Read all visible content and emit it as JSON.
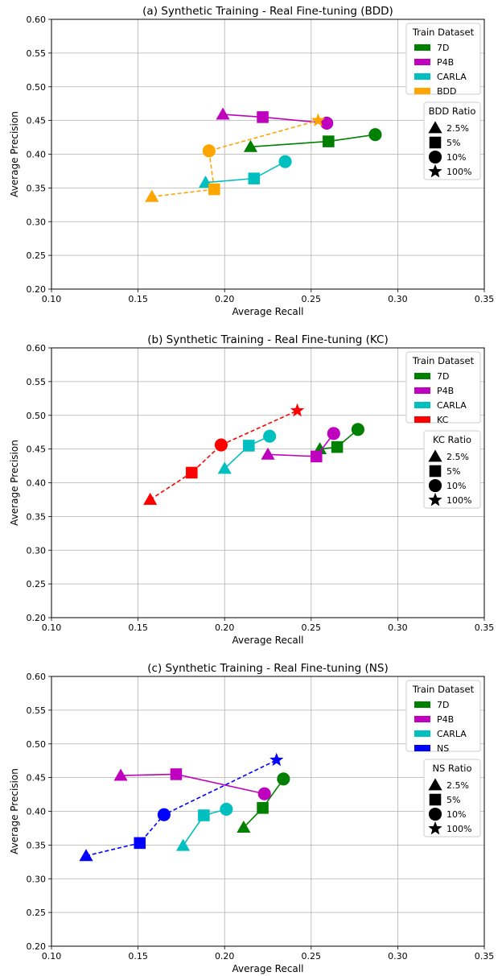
{
  "chart_data": [
    {
      "type": "scatter",
      "title": "(a) Synthetic Training - Real Fine-tuning (BDD)",
      "xlabel": "Average Recall",
      "ylabel": "Average Precision",
      "xlim": [
        0.1,
        0.35
      ],
      "ylim": [
        0.2,
        0.6
      ],
      "xticks": [
        "0.10",
        "0.15",
        "0.20",
        "0.25",
        "0.30",
        "0.35"
      ],
      "yticks": [
        "0.20",
        "0.25",
        "0.30",
        "0.35",
        "0.40",
        "0.45",
        "0.50",
        "0.55",
        "0.60"
      ],
      "grid": true,
      "legend_dataset": {
        "title": "Train Dataset",
        "entries": [
          "7D",
          "P4B",
          "CARLA",
          "BDD"
        ],
        "colors": [
          "#008000",
          "#bf00bf",
          "#00bfbf",
          "#ffa500"
        ],
        "placement": "top-right"
      },
      "legend_ratio": {
        "title": "BDD Ratio",
        "entries": [
          "2.5%",
          "5%",
          "10%",
          "100%"
        ],
        "markers": [
          "triangle",
          "square",
          "circle",
          "star"
        ],
        "placement": "right"
      },
      "series": [
        {
          "name": "7D",
          "color": "#008000",
          "dashed": false,
          "points": [
            {
              "x": 0.215,
              "y": 0.411,
              "m": "triangle"
            },
            {
              "x": 0.26,
              "y": 0.419,
              "m": "square"
            },
            {
              "x": 0.287,
              "y": 0.429,
              "m": "circle"
            }
          ]
        },
        {
          "name": "P4B",
          "color": "#bf00bf",
          "dashed": false,
          "points": [
            {
              "x": 0.199,
              "y": 0.459,
              "m": "triangle"
            },
            {
              "x": 0.222,
              "y": 0.455,
              "m": "square"
            },
            {
              "x": 0.259,
              "y": 0.446,
              "m": "circle"
            }
          ]
        },
        {
          "name": "CARLA",
          "color": "#00bfbf",
          "dashed": false,
          "points": [
            {
              "x": 0.189,
              "y": 0.358,
              "m": "triangle"
            },
            {
              "x": 0.217,
              "y": 0.364,
              "m": "square"
            },
            {
              "x": 0.235,
              "y": 0.389,
              "m": "circle"
            }
          ]
        },
        {
          "name": "BDD",
          "color": "#ffa500",
          "dashed": true,
          "points": [
            {
              "x": 0.158,
              "y": 0.337,
              "m": "triangle"
            },
            {
              "x": 0.194,
              "y": 0.348,
              "m": "square"
            },
            {
              "x": 0.191,
              "y": 0.405,
              "m": "circle"
            },
            {
              "x": 0.254,
              "y": 0.45,
              "m": "star"
            }
          ]
        }
      ]
    },
    {
      "type": "scatter",
      "title": "(b) Synthetic Training - Real Fine-tuning (KC)",
      "xlabel": "Average Recall",
      "ylabel": "Average Precision",
      "xlim": [
        0.1,
        0.35
      ],
      "ylim": [
        0.2,
        0.6
      ],
      "xticks": [
        "0.10",
        "0.15",
        "0.20",
        "0.25",
        "0.30",
        "0.35"
      ],
      "yticks": [
        "0.20",
        "0.25",
        "0.30",
        "0.35",
        "0.40",
        "0.45",
        "0.50",
        "0.55",
        "0.60"
      ],
      "grid": true,
      "legend_dataset": {
        "title": "Train Dataset",
        "entries": [
          "7D",
          "P4B",
          "CARLA",
          "KC"
        ],
        "colors": [
          "#008000",
          "#bf00bf",
          "#00bfbf",
          "#ff0000"
        ],
        "placement": "top-right"
      },
      "legend_ratio": {
        "title": "KC Ratio",
        "entries": [
          "2.5%",
          "5%",
          "10%",
          "100%"
        ],
        "markers": [
          "triangle",
          "square",
          "circle",
          "star"
        ],
        "placement": "right"
      },
      "series": [
        {
          "name": "7D",
          "color": "#008000",
          "dashed": false,
          "points": [
            {
              "x": 0.255,
              "y": 0.45,
              "m": "triangle"
            },
            {
              "x": 0.265,
              "y": 0.453,
              "m": "square"
            },
            {
              "x": 0.277,
              "y": 0.479,
              "m": "circle"
            }
          ]
        },
        {
          "name": "P4B",
          "color": "#bf00bf",
          "dashed": false,
          "points": [
            {
              "x": 0.225,
              "y": 0.442,
              "m": "triangle"
            },
            {
              "x": 0.253,
              "y": 0.439,
              "m": "square"
            },
            {
              "x": 0.263,
              "y": 0.473,
              "m": "circle"
            }
          ]
        },
        {
          "name": "CARLA",
          "color": "#00bfbf",
          "dashed": false,
          "points": [
            {
              "x": 0.2,
              "y": 0.421,
              "m": "triangle"
            },
            {
              "x": 0.214,
              "y": 0.455,
              "m": "square"
            },
            {
              "x": 0.226,
              "y": 0.469,
              "m": "circle"
            }
          ]
        },
        {
          "name": "KC",
          "color": "#ff0000",
          "dashed": true,
          "points": [
            {
              "x": 0.157,
              "y": 0.375,
              "m": "triangle"
            },
            {
              "x": 0.181,
              "y": 0.415,
              "m": "square"
            },
            {
              "x": 0.198,
              "y": 0.456,
              "m": "circle"
            },
            {
              "x": 0.242,
              "y": 0.507,
              "m": "star"
            }
          ]
        }
      ]
    },
    {
      "type": "scatter",
      "title": "(c) Synthetic Training - Real Fine-tuning (NS)",
      "xlabel": "Average Recall",
      "ylabel": "Average Precision",
      "xlim": [
        0.1,
        0.35
      ],
      "ylim": [
        0.2,
        0.6
      ],
      "xticks": [
        "0.10",
        "0.15",
        "0.20",
        "0.25",
        "0.30",
        "0.35"
      ],
      "yticks": [
        "0.20",
        "0.25",
        "0.30",
        "0.35",
        "0.40",
        "0.45",
        "0.50",
        "0.55",
        "0.60"
      ],
      "grid": true,
      "legend_dataset": {
        "title": "Train Dataset",
        "entries": [
          "7D",
          "P4B",
          "CARLA",
          "NS"
        ],
        "colors": [
          "#008000",
          "#bf00bf",
          "#00bfbf",
          "#0000ff"
        ],
        "placement": "top-right"
      },
      "legend_ratio": {
        "title": "NS Ratio",
        "entries": [
          "2.5%",
          "5%",
          "10%",
          "100%"
        ],
        "markers": [
          "triangle",
          "square",
          "circle",
          "star"
        ],
        "placement": "right"
      },
      "series": [
        {
          "name": "7D",
          "color": "#008000",
          "dashed": false,
          "points": [
            {
              "x": 0.211,
              "y": 0.376,
              "m": "triangle"
            },
            {
              "x": 0.222,
              "y": 0.405,
              "m": "square"
            },
            {
              "x": 0.234,
              "y": 0.448,
              "m": "circle"
            }
          ]
        },
        {
          "name": "P4B",
          "color": "#bf00bf",
          "dashed": false,
          "points": [
            {
              "x": 0.14,
              "y": 0.453,
              "m": "triangle"
            },
            {
              "x": 0.172,
              "y": 0.455,
              "m": "square"
            },
            {
              "x": 0.223,
              "y": 0.426,
              "m": "circle"
            }
          ]
        },
        {
          "name": "CARLA",
          "color": "#00bfbf",
          "dashed": false,
          "points": [
            {
              "x": 0.176,
              "y": 0.349,
              "m": "triangle"
            },
            {
              "x": 0.188,
              "y": 0.394,
              "m": "square"
            },
            {
              "x": 0.201,
              "y": 0.403,
              "m": "circle"
            }
          ]
        },
        {
          "name": "NS",
          "color": "#0000ff",
          "dashed": true,
          "points": [
            {
              "x": 0.12,
              "y": 0.334,
              "m": "triangle"
            },
            {
              "x": 0.151,
              "y": 0.353,
              "m": "square"
            },
            {
              "x": 0.165,
              "y": 0.395,
              "m": "circle"
            },
            {
              "x": 0.23,
              "y": 0.476,
              "m": "star"
            }
          ]
        }
      ]
    }
  ]
}
